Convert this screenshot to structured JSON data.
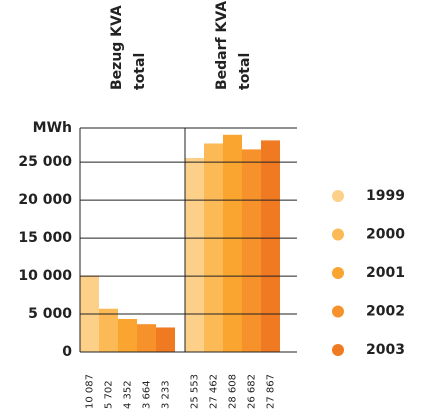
{
  "chart_data": {
    "type": "bar",
    "y_axis_label": "MWh",
    "categories": [
      [
        "Bezug KVA",
        "total"
      ],
      [
        "Bedarf KVA",
        "total"
      ]
    ],
    "series": [
      {
        "name": "1999",
        "color": "#fdd08a",
        "values": [
          10087,
          25553
        ],
        "value_labels": [
          "10 087",
          "25 553"
        ]
      },
      {
        "name": "2000",
        "color": "#fbba55",
        "values": [
          5702,
          27462
        ],
        "value_labels": [
          "5 702",
          "27 462"
        ]
      },
      {
        "name": "2001",
        "color": "#f9a52f",
        "values": [
          4352,
          28608
        ],
        "value_labels": [
          "4 352",
          "28 608"
        ]
      },
      {
        "name": "2002",
        "color": "#f6912b",
        "values": [
          3664,
          26682
        ],
        "value_labels": [
          "3 664",
          "26 682"
        ]
      },
      {
        "name": "2003",
        "color": "#f07a22",
        "values": [
          3233,
          27867
        ],
        "value_labels": [
          "3 233",
          "27 867"
        ]
      }
    ],
    "ylim": [
      0,
      29500
    ],
    "yticks": [
      0,
      {
        "value": 5000,
        "label": "5 000"
      },
      {
        "value": 10000,
        "label": "10 000"
      },
      {
        "value": 15000,
        "label": "15 000"
      },
      {
        "value": 20000,
        "label": "20 000"
      },
      {
        "value": 25000,
        "label": "25 000"
      }
    ],
    "grid": true
  }
}
